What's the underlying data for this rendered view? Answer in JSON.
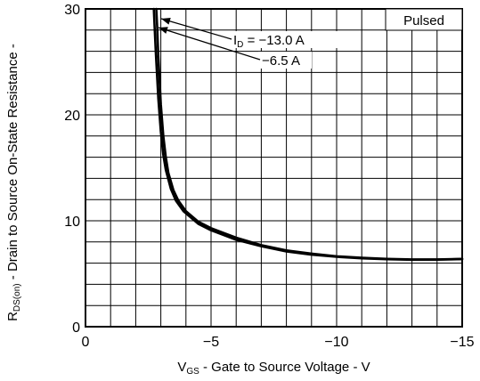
{
  "chart_data": {
    "type": "line",
    "xlabel": {
      "main": "V",
      "sub": "GS",
      "rest": " - Gate to Source Voltage - V"
    },
    "ylabel": {
      "main": "R",
      "sub": "DS(on)",
      "rest": " - Drain to Source On-State Resistance -"
    },
    "xlim": [
      0,
      -15
    ],
    "ylim": [
      0,
      30
    ],
    "x_ticks": [
      {
        "value": 0,
        "label": "0"
      },
      {
        "value": -5,
        "label": "−5"
      },
      {
        "value": -10,
        "label": "−10"
      },
      {
        "value": -15,
        "label": "−15"
      }
    ],
    "y_ticks": [
      {
        "value": 0,
        "label": "0"
      },
      {
        "value": 10,
        "label": "10"
      },
      {
        "value": 20,
        "label": "20"
      },
      {
        "value": 30,
        "label": "30"
      }
    ],
    "grid": true,
    "grid_x_step": -1,
    "grid_y_step": 2,
    "annotations": [
      {
        "text": "Pulsed"
      },
      {
        "main": "I",
        "sub": "D",
        "rest": " = −13.0 A"
      },
      {
        "text": "−6.5 A"
      }
    ],
    "series": [
      {
        "x": [
          -2.82,
          -2.85,
          -2.9,
          -3.0,
          -3.1,
          -3.2,
          -3.3,
          -3.5,
          -3.7,
          -4.0,
          -4.5,
          -5.0,
          -6.0,
          -7.0,
          -8.0,
          -9.0,
          -10.0,
          -11.0,
          -12.0,
          -13.0,
          -14.0,
          -15.0
        ],
        "y": [
          30.0,
          28.5,
          25.5,
          21.0,
          18.0,
          16.0,
          14.5,
          12.9,
          11.9,
          10.9,
          9.9,
          9.3,
          8.4,
          7.7,
          7.2,
          6.9,
          6.65,
          6.5,
          6.4,
          6.35,
          6.35,
          6.4
        ]
      },
      {
        "x": [
          -2.72,
          -2.75,
          -2.8,
          -2.9,
          -3.0,
          -3.1,
          -3.2,
          -3.4,
          -3.6,
          -3.9,
          -4.5,
          -5.0,
          -6.0,
          -7.0,
          -8.0,
          -9.0,
          -10.0,
          -11.0,
          -12.0,
          -13.0,
          -14.0,
          -15.0
        ],
        "y": [
          30.0,
          28.3,
          25.8,
          21.5,
          18.4,
          16.2,
          14.8,
          13.0,
          11.9,
          10.9,
          9.7,
          9.1,
          8.2,
          7.6,
          7.1,
          6.8,
          6.6,
          6.45,
          6.37,
          6.32,
          6.33,
          6.38
        ]
      }
    ]
  }
}
